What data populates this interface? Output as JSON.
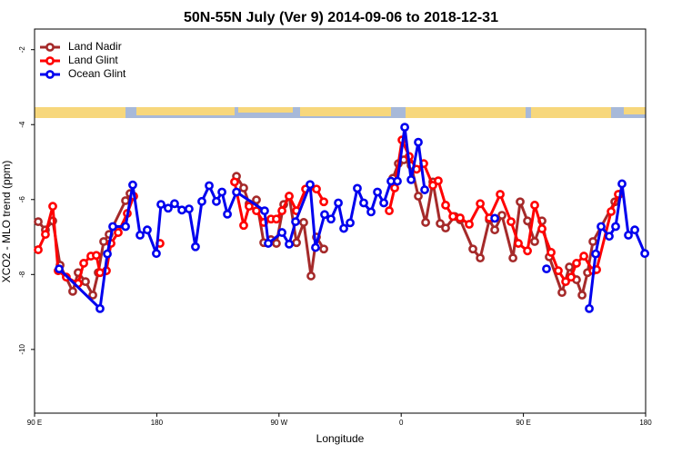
{
  "chart_data": {
    "type": "line",
    "title": "50N-55N July (Ver 9)   2014-09-06 to 2018-12-31",
    "x_label": "Longitude",
    "y_label": "XCO2 - MLO trend (ppm)",
    "xlim": [
      90,
      540
    ],
    "xticks": [
      {
        "value": 90,
        "label": "90 E"
      },
      180,
      {
        "value": 270,
        "label": "90 W"
      },
      {
        "value": 360,
        "label": "0"
      },
      {
        "value": 450,
        "label": "90 E"
      },
      {
        "value": 540,
        "label": "180"
      }
    ],
    "ylim": [
      -11.7,
      -1.45
    ],
    "yticks": [
      -2,
      -4,
      -6,
      -8,
      -10
    ],
    "legend": "top-left",
    "series": [
      {
        "name": "Land Nadir",
        "color": "#a52a2a",
        "x": [
          92.7,
          98.0,
          103.4,
          108.8,
          118.1,
          122.1,
          127.5,
          132.9,
          136.9,
          140.9,
          144.9,
          157.0,
          160.3,
          234.7,
          238.7,
          244.0,
          248.0,
          253.4,
          258.8,
          264.1,
          268.1,
          273.5,
          277.5,
          282.9,
          288.2,
          293.6,
          297.6,
          303.0,
          349.8,
          353.9,
          357.9,
          361.9,
          367.3,
          372.6,
          378.0,
          383.3,
          388.7,
          392.7,
          399.4,
          403.4,
          412.8,
          418.2,
          424.9,
          428.9,
          434.2,
          442.3,
          447.6,
          453.0,
          458.3,
          463.7,
          469.0,
          478.4,
          483.8,
          489.1,
          493.2,
          497.2,
          501.2,
          517.3,
          520.6
        ],
        "values": [
          -6.59,
          -6.81,
          -6.57,
          -7.75,
          -8.45,
          -7.95,
          -8.19,
          -8.55,
          -7.95,
          -7.12,
          -6.93,
          -6.03,
          -5.84,
          null,
          -5.38,
          -5.69,
          -6.11,
          -6.01,
          -7.15,
          -7.07,
          -7.17,
          -6.13,
          -5.91,
          -7.15,
          -6.61,
          -8.04,
          -7.0,
          -7.32,
          null,
          -5.43,
          -5.04,
          -4.94,
          -5.09,
          -5.91,
          -6.61,
          -5.53,
          -6.64,
          -6.76,
          -6.45,
          -6.54,
          -7.32,
          -7.56,
          -6.54,
          -6.81,
          -6.42,
          -7.56,
          -6.06,
          -6.57,
          -7.12,
          -6.57,
          -7.53,
          -8.48,
          -7.8,
          -8.14,
          -8.55,
          -7.95,
          -7.12,
          -6.06,
          -5.86
        ]
      },
      {
        "name": "Land Glint",
        "color": "#ff0000",
        "x": [
          92.7,
          98.0,
          103.4,
          107.4,
          113.4,
          122.1,
          126.2,
          131.5,
          135.5,
          138.2,
          142.9,
          146.3,
          151.6,
          158.3,
          163.0,
          172.0,
          182.4,
          230.0,
          237.3,
          244.0,
          248.0,
          253.4,
          258.8,
          264.1,
          268.1,
          272.2,
          277.5,
          282.9,
          289.6,
          297.6,
          303.0,
          340.0,
          351.2,
          355.2,
          360.6,
          365.9,
          371.3,
          376.6,
          383.3,
          387.3,
          392.7,
          398.1,
          403.4,
          410.1,
          418.2,
          424.9,
          432.9,
          440.9,
          446.3,
          453.0,
          458.3,
          463.7,
          470.4,
          475.7,
          481.1,
          485.1,
          489.1,
          494.5,
          501.2,
          503.9,
          514.6,
          519.9
        ],
        "values": [
          -7.34,
          -6.93,
          -6.18,
          -7.9,
          -8.07,
          -8.24,
          -7.7,
          -7.51,
          -7.49,
          -7.95,
          -7.9,
          -7.17,
          -6.88,
          -6.37,
          -5.91,
          null,
          -7.17,
          null,
          -5.53,
          -6.69,
          -6.18,
          -6.3,
          -6.61,
          -6.52,
          -6.52,
          -6.3,
          -5.91,
          -6.3,
          -5.72,
          -5.72,
          -6.06,
          null,
          -6.3,
          -5.69,
          -4.41,
          -4.85,
          -5.19,
          -5.04,
          -5.62,
          -5.5,
          -6.15,
          -6.45,
          -6.49,
          -6.66,
          -6.11,
          -6.49,
          -5.86,
          -6.59,
          -7.17,
          -7.37,
          -6.15,
          -6.78,
          -7.41,
          -7.9,
          -8.19,
          -8.07,
          -7.7,
          -7.51,
          -7.9,
          -7.87,
          -6.32,
          -5.86
        ]
      },
      {
        "name": "Ocean Glint",
        "color": "#0000ee",
        "x": [
          108.1,
          138.2,
          143.6,
          147.6,
          157.0,
          162.3,
          167.7,
          173.0,
          179.7,
          183.1,
          188.4,
          193.1,
          198.5,
          203.8,
          208.5,
          213.2,
          218.6,
          223.9,
          228.0,
          232.0,
          238.7,
          259.4,
          262.1,
          272.2,
          277.5,
          282.2,
          292.9,
          296.9,
          303.6,
          308.3,
          313.7,
          317.7,
          322.4,
          327.7,
          332.4,
          337.8,
          342.5,
          347.2,
          352.5,
          357.2,
          362.6,
          367.3,
          372.6,
          377.3,
          400.0,
          428.9,
          445.0,
          467.0,
          480.0,
          498.5,
          503.2,
          507.2,
          513.2,
          517.9,
          522.6,
          527.3,
          532.0,
          539.4
        ],
        "values": [
          -7.85,
          -8.91,
          -7.45,
          -6.72,
          -6.72,
          -5.61,
          -6.95,
          -6.81,
          -7.44,
          -6.13,
          -6.23,
          -6.11,
          -6.28,
          -6.25,
          -7.26,
          -6.05,
          -5.63,
          -6.05,
          -5.8,
          -6.39,
          -5.8,
          -6.3,
          -7.17,
          -6.88,
          -7.19,
          -6.59,
          -5.6,
          -7.28,
          -6.4,
          -6.52,
          -6.09,
          -6.77,
          -6.62,
          -5.7,
          -6.09,
          -6.33,
          -5.8,
          -6.09,
          -5.51,
          -5.51,
          -4.07,
          -5.47,
          -4.47,
          -5.74,
          null,
          -6.5,
          null,
          -7.85,
          null,
          -8.91,
          -7.45,
          -6.72,
          -6.98,
          -6.72,
          -5.58,
          -6.95,
          -6.81,
          -7.44
        ]
      }
    ]
  }
}
